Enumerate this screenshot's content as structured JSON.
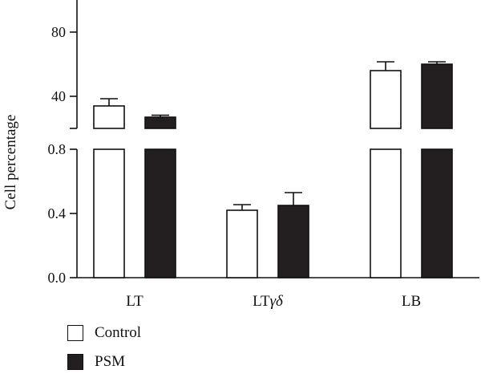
{
  "chart_data": {
    "type": "bar",
    "ylabel": "Cell percentage",
    "categories": [
      "LT",
      "LTγδ",
      "LB"
    ],
    "category_label_parts": [
      {
        "main": "LT",
        "italic": ""
      },
      {
        "main": "LT",
        "italic": "γδ"
      },
      {
        "main": "LB",
        "italic": ""
      }
    ],
    "y_axis_break": true,
    "ylim_lower": [
      0,
      0.8
    ],
    "ylim_upper": [
      20,
      100
    ],
    "yticks_lower": [
      "0.0",
      "0.4",
      "0.8"
    ],
    "yticks_upper": [
      "40",
      "80"
    ],
    "series": [
      {
        "name": "Control",
        "color": "#ffffff",
        "values": [
          34,
          0.42,
          56
        ],
        "errors": [
          4.5,
          0.035,
          5.5
        ]
      },
      {
        "name": "PSM",
        "color": "#231f20",
        "values": [
          27,
          0.45,
          60
        ],
        "errors": [
          1.2,
          0.08,
          1.5
        ]
      }
    ]
  },
  "legend": {
    "items": [
      {
        "label": "Control",
        "color": "#ffffff"
      },
      {
        "label": "PSM",
        "color": "#231f20"
      }
    ]
  }
}
